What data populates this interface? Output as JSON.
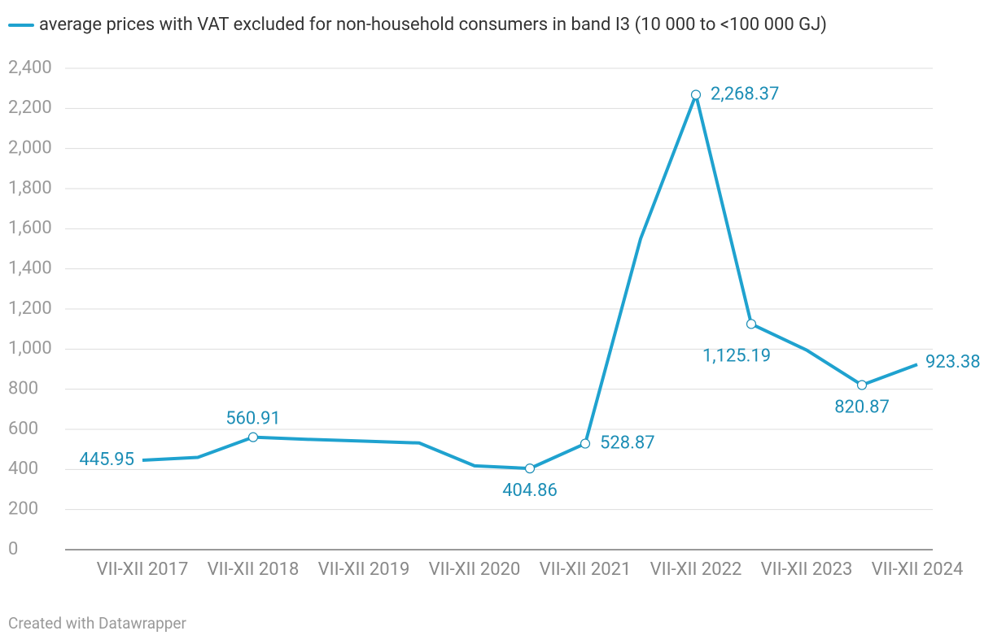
{
  "chart_data": {
    "type": "line",
    "categories": [
      "VII-XII 2017",
      null,
      "VII-XII 2018",
      null,
      "VII-XII 2019",
      null,
      "VII-XII 2020",
      null,
      "VII-XII 2021",
      null,
      "VII-XII 2022",
      null,
      "VII-XII 2023",
      null,
      "VII-XII 2024"
    ],
    "series": [
      {
        "name": "average prices with VAT excluded for non-household consumers in band I3 (10 000 to <100 000 GJ)",
        "color": "#1fa2cf",
        "values": [
          445.95,
          460,
          560.91,
          550,
          541,
          532,
          418,
          404.86,
          528.87,
          1550,
          2268.37,
          1125.19,
          995,
          820.87,
          923.38
        ],
        "value_labels": [
          "445.95",
          null,
          "560.91",
          null,
          null,
          null,
          null,
          "404.86",
          "528.87",
          null,
          "2,268.37",
          "1,125.19",
          null,
          "820.87",
          "923.38"
        ]
      }
    ],
    "ylim": [
      0,
      2400
    ],
    "yticks": [
      0,
      200,
      400,
      600,
      800,
      {
        "value": 1000,
        "label": "1,000"
      },
      {
        "value": 1200,
        "label": "1,200"
      },
      {
        "value": 1400,
        "label": "1,400"
      },
      {
        "value": 1600,
        "label": "1,600"
      },
      {
        "value": 1800,
        "label": "1,800"
      },
      {
        "value": 2000,
        "label": "2,000"
      },
      {
        "value": 2200,
        "label": "2,200"
      },
      {
        "value": 2400,
        "label": "2,400"
      }
    ],
    "grid": true,
    "footer": "Created with Datawrapper"
  }
}
